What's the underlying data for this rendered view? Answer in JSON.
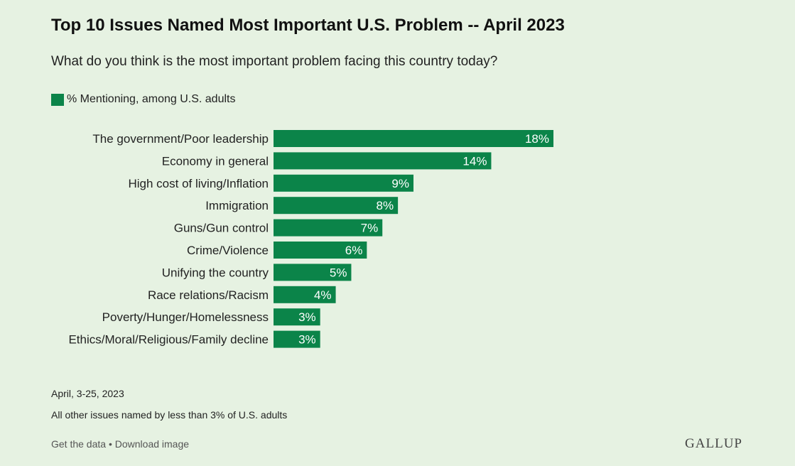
{
  "header": {
    "title": "Top 10 Issues Named Most Important U.S. Problem -- April 2023",
    "subtitle": "What do you think is the most important problem facing this country today?"
  },
  "legend": {
    "label": "% Mentioning, among U.S. adults"
  },
  "colors": {
    "bar": "#0b8449",
    "bar_label": "#ffffff",
    "background": "#e6f2e2"
  },
  "chart_data": {
    "type": "bar",
    "orientation": "horizontal",
    "categories": [
      "The government/Poor leadership",
      "Economy in general",
      "High cost of living/Inflation",
      "Immigration",
      "Guns/Gun control",
      "Crime/Violence",
      "Unifying the country",
      "Race relations/Racism",
      "Poverty/Hunger/Homelessness",
      "Ethics/Moral/Religious/Family decline"
    ],
    "series": [
      {
        "name": "% Mentioning, among U.S. adults",
        "values": [
          18,
          14,
          9,
          8,
          7,
          6,
          5,
          4,
          3,
          3
        ]
      }
    ],
    "value_labels": [
      "18%",
      "14%",
      "9%",
      "8%",
      "7%",
      "6%",
      "5%",
      "4%",
      "3%",
      "3%"
    ],
    "xlim": [
      0,
      18
    ],
    "grid": false,
    "legend_position": "top-left"
  },
  "notes": {
    "date": "April, 3-25, 2023",
    "other": "All other issues named by less than 3% of U.S. adults"
  },
  "footer": {
    "get_data": "Get the data",
    "separator": "•",
    "download": "Download image",
    "brand": "GALLUP"
  }
}
